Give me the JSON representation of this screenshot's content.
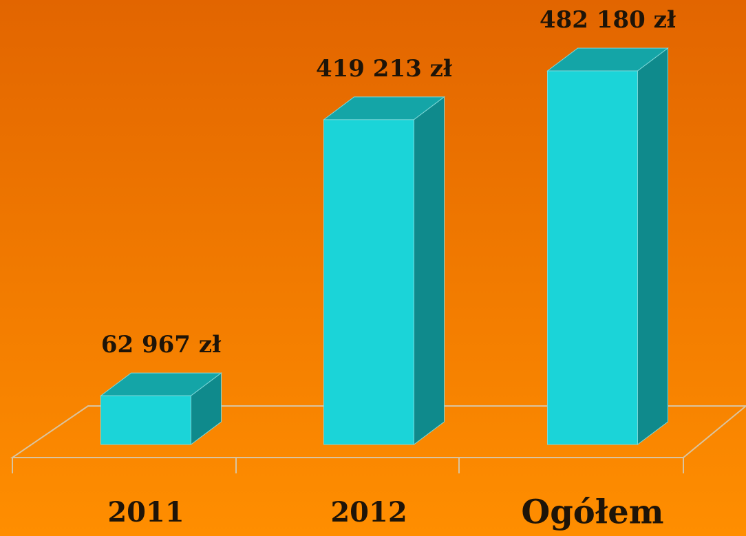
{
  "chart_data": {
    "type": "bar3d",
    "categories": [
      "2011",
      "2012",
      "Ogółem"
    ],
    "values": [
      62967,
      419213,
      482180
    ],
    "value_labels": [
      "62 967 zł",
      "419 213 zł",
      "482 180 zł"
    ],
    "color": "#1bd4d8"
  }
}
